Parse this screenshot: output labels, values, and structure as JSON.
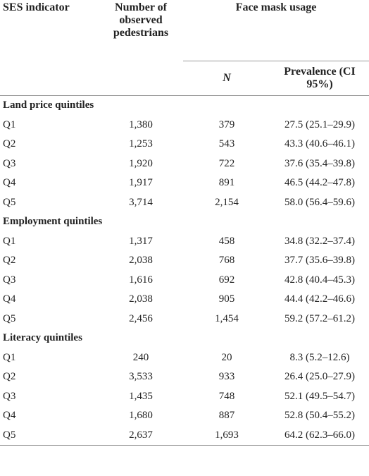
{
  "header": {
    "indicator": "SES indicator",
    "observed": "Number of observed pedestrians",
    "usage": "Face mask usage",
    "n": "N",
    "prevalence": "Prevalence (CI 95%)"
  },
  "sections": [
    {
      "title": "Land price quintiles",
      "rows": [
        [
          "Q1",
          "1,380",
          "379",
          "27.5 (25.1–29.9)"
        ],
        [
          "Q2",
          "1,253",
          "543",
          "43.3 (40.6–46.1)"
        ],
        [
          "Q3",
          "1,920",
          "722",
          "37.6 (35.4–39.8)"
        ],
        [
          "Q4",
          "1,917",
          "891",
          "46.5 (44.2–47.8)"
        ],
        [
          "Q5",
          "3,714",
          "2,154",
          "58.0 (56.4–59.6)"
        ]
      ]
    },
    {
      "title": "Employment quintiles",
      "rows": [
        [
          "Q1",
          "1,317",
          "458",
          "34.8 (32.2–37.4)"
        ],
        [
          "Q2",
          "2,038",
          "768",
          "37.7 (35.6–39.8)"
        ],
        [
          "Q3",
          "1,616",
          "692",
          "42.8 (40.4–45.3)"
        ],
        [
          "Q4",
          "2,038",
          "905",
          "44.4 (42.2–46.6)"
        ],
        [
          "Q5",
          "2,456",
          "1,454",
          "59.2 (57.2–61.2)"
        ]
      ]
    },
    {
      "title": "Literacy quintiles",
      "rows": [
        [
          "Q1",
          "240",
          "20",
          "8.3 (5.2–12.6)"
        ],
        [
          "Q2",
          "3,533",
          "933",
          "26.4 (25.0–27.9)"
        ],
        [
          "Q3",
          "1,435",
          "748",
          "52.1 (49.5–54.7)"
        ],
        [
          "Q4",
          "1,680",
          "887",
          "52.8 (50.4–55.2)"
        ],
        [
          "Q5",
          "2,637",
          "1,693",
          "64.2 (62.3–66.0)"
        ]
      ]
    }
  ]
}
